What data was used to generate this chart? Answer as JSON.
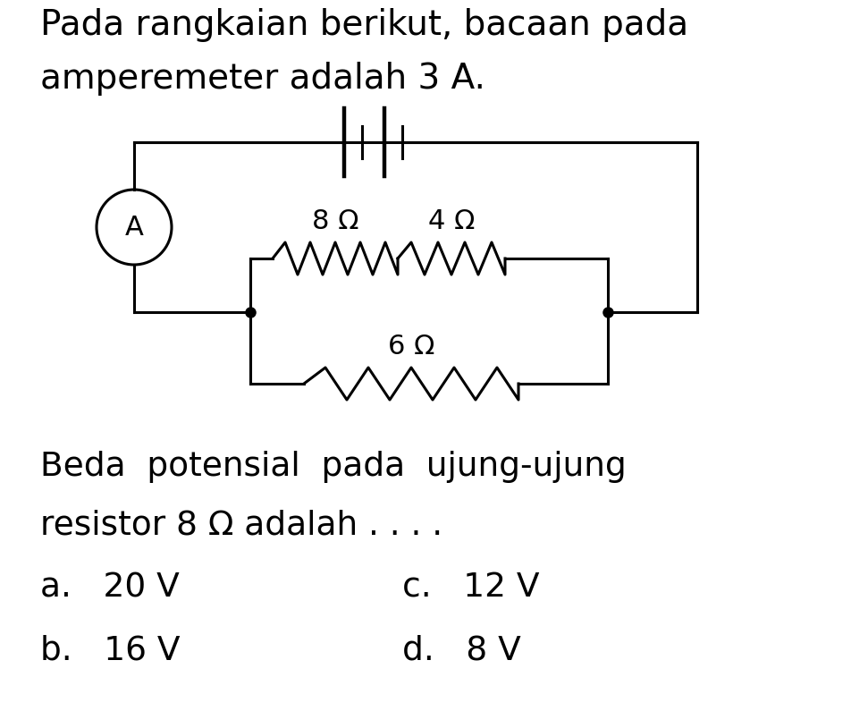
{
  "title_line1": "Pada rangkaian berikut, bacaan pada",
  "title_line2": "amperemeter adalah 3 A.",
  "label_8ohm": "8 Ω",
  "label_4ohm": "4 Ω",
  "label_6ohm": "6 Ω",
  "label_A": "A",
  "question_line1": "Beda  potensial  pada  ujung-ujung",
  "question_line2": "resistor 8 Ω adalah . . . .",
  "option_a": "a.   20 V",
  "option_b": "b.   16 V",
  "option_c": "c.   12 V",
  "option_d": "d.   8 V",
  "bg_color": "#ffffff",
  "line_color": "#000000",
  "text_color": "#000000",
  "font_size_title": 28,
  "font_size_label": 22,
  "font_size_question": 27,
  "font_size_option": 27
}
